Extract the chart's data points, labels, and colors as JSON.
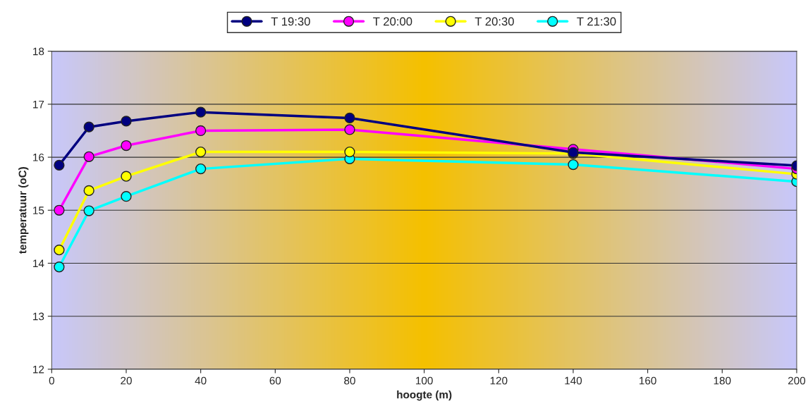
{
  "chart_data": {
    "type": "line",
    "xlabel": "hoogte (m)",
    "ylabel": "temperatuur (oC)",
    "x": [
      2,
      10,
      20,
      40,
      80,
      140,
      200
    ],
    "series": [
      {
        "name": "T 19:30",
        "color": "#000080",
        "values": [
          15.85,
          16.57,
          16.68,
          16.85,
          16.74,
          16.09,
          15.84
        ]
      },
      {
        "name": "T 20:00",
        "color": "#ff00ff",
        "values": [
          15.0,
          16.01,
          16.22,
          16.5,
          16.52,
          16.15,
          15.78
        ]
      },
      {
        "name": "T 20:30",
        "color": "#ffff00",
        "values": [
          14.25,
          15.37,
          15.64,
          16.1,
          16.1,
          16.07,
          15.68
        ]
      },
      {
        "name": "T 21:30",
        "color": "#00ffff",
        "values": [
          13.93,
          14.99,
          15.26,
          15.78,
          15.97,
          15.86,
          15.54
        ]
      }
    ],
    "xlim": [
      0,
      200
    ],
    "xticks": [
      0,
      20,
      40,
      60,
      80,
      100,
      120,
      140,
      160,
      180,
      200
    ],
    "ylim": [
      12,
      18
    ],
    "yticks": [
      12,
      13,
      14,
      15,
      16,
      17,
      18
    ],
    "grid": "y",
    "legend": "top",
    "marker": "circle",
    "line_style": "solid"
  }
}
